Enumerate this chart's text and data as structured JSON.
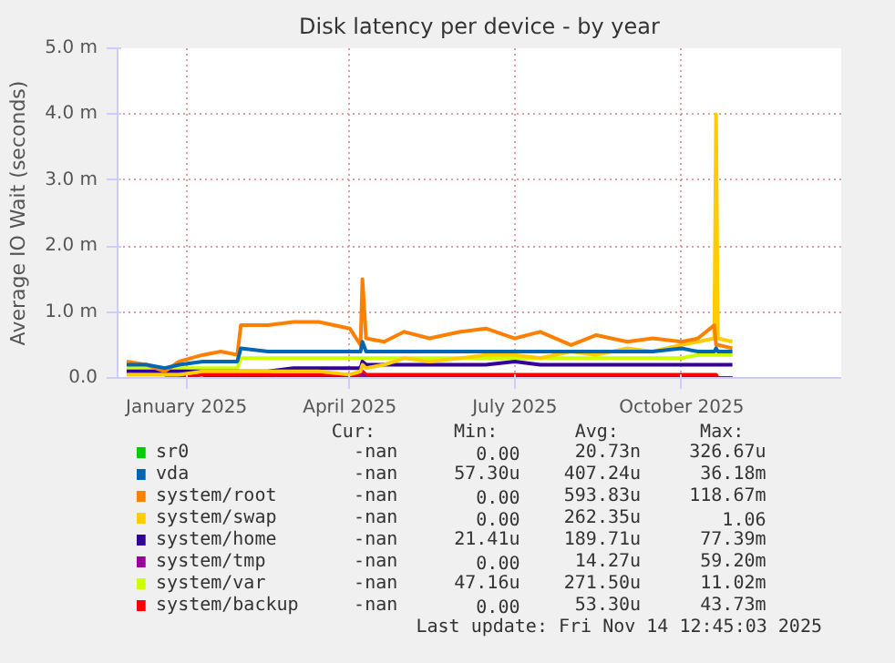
{
  "chart_data": {
    "type": "line",
    "title": "Disk latency per device - by year",
    "ylabel": "Average IO Wait (seconds)",
    "x": [
      "2024-11-29",
      "2024-12-10",
      "2024-12-20",
      "2024-12-28",
      "2025-01-10",
      "2025-01-20",
      "2025-01-29",
      "2025-01-31",
      "2025-02-15",
      "2025-03-01",
      "2025-03-15",
      "2025-04-01",
      "2025-04-07",
      "2025-04-08",
      "2025-04-10",
      "2025-04-20",
      "2025-05-01",
      "2025-05-15",
      "2025-06-01",
      "2025-06-15",
      "2025-07-01",
      "2025-07-15",
      "2025-08-01",
      "2025-08-15",
      "2025-09-01",
      "2025-09-15",
      "2025-10-01",
      "2025-10-10",
      "2025-10-19",
      "2025-10-20",
      "2025-10-21",
      "2025-10-29"
    ],
    "xlim": [
      "2024-11-24",
      "2025-12-28"
    ],
    "xticks": [
      {
        "value": "2025-01-01",
        "label": "January 2025"
      },
      {
        "value": "2025-04-01",
        "label": "April 2025"
      },
      {
        "value": "2025-07-01",
        "label": "July 2025"
      },
      {
        "value": "2025-10-01",
        "label": "October 2025"
      }
    ],
    "ylim": [
      0,
      5
    ],
    "yticks": [
      {
        "value": 0,
        "label": "0.0"
      },
      {
        "value": 1,
        "label": "1.0 m"
      },
      {
        "value": 2,
        "label": "2.0 m"
      },
      {
        "value": 3,
        "label": "3.0 m"
      },
      {
        "value": 4,
        "label": "4.0 m"
      },
      {
        "value": 5,
        "label": "5.0 m"
      }
    ],
    "grid": true,
    "legend": "bottom",
    "series": [
      {
        "name": "sr0",
        "color": "#00cc00",
        "values": [
          null,
          null,
          null,
          null,
          null,
          null,
          null,
          null,
          null,
          null,
          null,
          null,
          null,
          null,
          null,
          null,
          null,
          null,
          null,
          null,
          null,
          null,
          null,
          null,
          null,
          null,
          null,
          null,
          null,
          null,
          null,
          null
        ]
      },
      {
        "name": "vda",
        "color": "#0066b3",
        "values": [
          0.2,
          0.2,
          0.15,
          0.2,
          0.25,
          0.25,
          0.25,
          0.45,
          0.4,
          0.4,
          0.4,
          0.4,
          0.4,
          0.55,
          0.4,
          0.4,
          0.4,
          0.4,
          0.4,
          0.4,
          0.4,
          0.4,
          0.4,
          0.4,
          0.4,
          0.4,
          0.45,
          0.4,
          0.4,
          0.45,
          0.4,
          0.4
        ]
      },
      {
        "name": "system/root",
        "color": "#ff8000",
        "values": [
          0.25,
          0.2,
          0.1,
          0.25,
          0.35,
          0.4,
          0.35,
          0.8,
          0.8,
          0.85,
          0.85,
          0.75,
          0.5,
          1.5,
          0.6,
          0.55,
          0.7,
          0.6,
          0.7,
          0.75,
          0.6,
          0.7,
          0.5,
          0.65,
          0.55,
          0.6,
          0.55,
          0.6,
          0.8,
          0.5,
          0.5,
          0.45
        ]
      },
      {
        "name": "system/swap",
        "color": "#ffcc00",
        "values": [
          0.05,
          0.05,
          0.05,
          0.05,
          0.1,
          0.1,
          0.1,
          0.1,
          0.1,
          0.1,
          0.1,
          0.05,
          0.1,
          0.2,
          0.15,
          0.2,
          0.3,
          0.25,
          0.3,
          0.35,
          0.35,
          0.3,
          0.4,
          0.35,
          0.45,
          0.4,
          0.5,
          0.55,
          0.6,
          4.0,
          0.6,
          0.55
        ]
      },
      {
        "name": "system/home",
        "color": "#330099",
        "values": [
          0.1,
          0.1,
          0.1,
          0.1,
          0.1,
          0.1,
          0.1,
          0.1,
          0.1,
          0.15,
          0.15,
          0.15,
          0.15,
          0.25,
          0.2,
          0.2,
          0.2,
          0.2,
          0.2,
          0.2,
          0.25,
          0.2,
          0.2,
          0.2,
          0.2,
          0.2,
          0.2,
          0.2,
          0.2,
          0.2,
          0.2,
          0.2
        ]
      },
      {
        "name": "system/tmp",
        "color": "#990099",
        "values": [
          null,
          null,
          null,
          null,
          0,
          0,
          0,
          0,
          0,
          0,
          0,
          0,
          0,
          0.05,
          0,
          0,
          0,
          0,
          0,
          0,
          0,
          0,
          0,
          0,
          0,
          0,
          0,
          0,
          0,
          0,
          0,
          0
        ]
      },
      {
        "name": "system/var",
        "color": "#ccff00",
        "values": [
          0.15,
          0.15,
          0.15,
          0.15,
          0.15,
          0.15,
          0.15,
          0.3,
          0.3,
          0.3,
          0.3,
          0.3,
          0.3,
          0.3,
          0.3,
          0.3,
          0.3,
          0.3,
          0.3,
          0.3,
          0.3,
          0.3,
          0.3,
          0.3,
          0.3,
          0.3,
          0.3,
          0.35,
          0.35,
          0.35,
          0.35,
          0.35
        ]
      },
      {
        "name": "system/backup",
        "color": "#ff0000",
        "values": [
          null,
          null,
          0,
          0,
          0.05,
          0.05,
          0.05,
          0.05,
          0.05,
          0.05,
          0.05,
          0.05,
          0.05,
          0.1,
          0.05,
          0.05,
          0.05,
          0.05,
          0.05,
          0.05,
          0.05,
          0.05,
          0.05,
          0.05,
          0.05,
          0.05,
          0.05,
          0.05,
          0.05,
          0.05,
          0,
          0
        ]
      }
    ],
    "annotations": [
      "Cur:",
      "Min:",
      "Avg:",
      "Max:",
      "-nan",
      "0.00",
      "20.73n",
      "326.67u",
      "-nan",
      "57.30u",
      "407.24u",
      "36.18m",
      "-nan",
      "0.00",
      "593.83u",
      "118.67m",
      "-nan",
      "0.00",
      "262.35u",
      "1.06",
      "-nan",
      "21.41u",
      "189.71u",
      "77.39m",
      "-nan",
      "0.00",
      "14.27u",
      "59.20m",
      "-nan",
      "47.16u",
      "271.50u",
      "11.02m",
      "-nan",
      "0.00",
      "53.30u",
      "43.73m",
      "Last update: Fri Nov 14 12:45:03 2025"
    ]
  }
}
